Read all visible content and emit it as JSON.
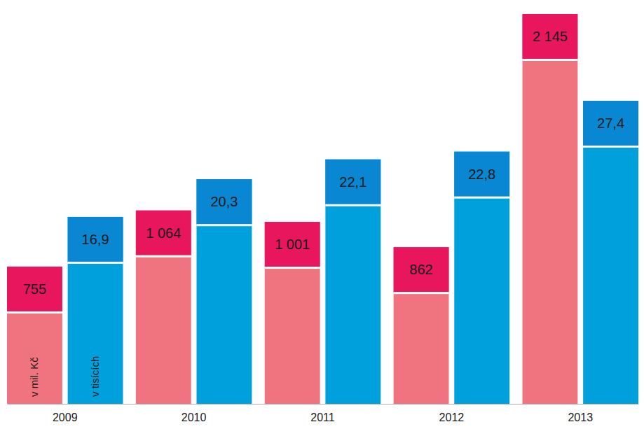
{
  "chart_data": {
    "type": "bar",
    "categories": [
      "2009",
      "2010",
      "2011",
      "2012",
      "2013"
    ],
    "series": [
      {
        "name": "v mil. Kč",
        "color": "#f07480",
        "values": [
          755,
          1064,
          1001,
          862,
          2145
        ],
        "value_labels": [
          "755",
          "1 064",
          "1 001",
          "862",
          "2 145"
        ]
      },
      {
        "name": "v tisících",
        "color": "#00a0dc",
        "axis": "y2",
        "values": [
          16.9,
          20.3,
          22.1,
          22.8,
          27.4
        ],
        "value_labels": [
          "16,9",
          "20,3",
          "22,1",
          "22,8",
          "27,4"
        ]
      }
    ],
    "data_labels": true,
    "tick_labels": "x"
  }
}
